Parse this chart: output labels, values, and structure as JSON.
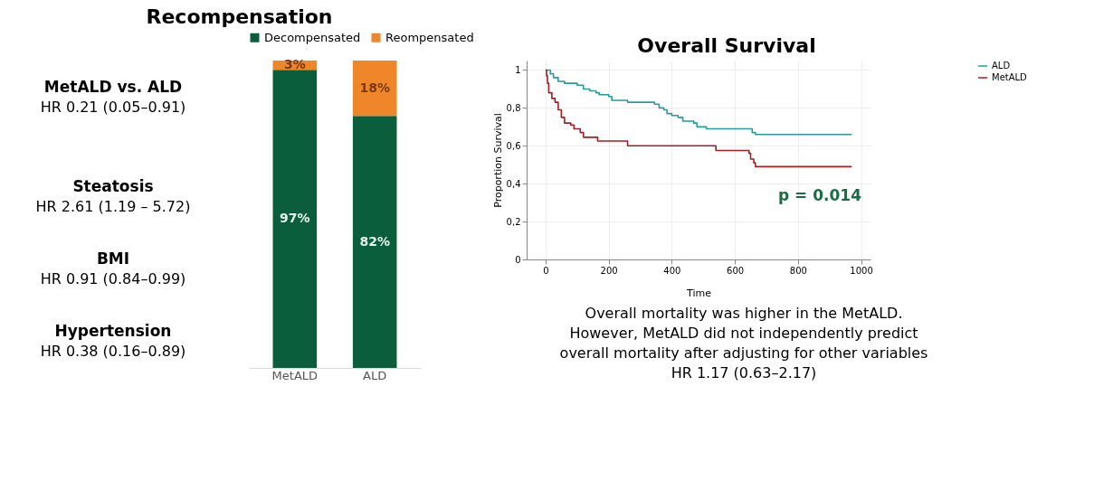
{
  "chart_data": [
    {
      "type": "bar",
      "title": "Recompensation",
      "stacked": true,
      "legend": "top",
      "categories": [
        "MetALD",
        "ALD"
      ],
      "series": [
        {
          "name": "Decompensated",
          "color": "#0b5e3b",
          "values": [
            97,
            82
          ],
          "value_labels": [
            "97%",
            "82%"
          ]
        },
        {
          "name": "Reompensated",
          "color": "#f0862a",
          "values": [
            3,
            18
          ],
          "value_labels": [
            "3%",
            "18%"
          ]
        }
      ],
      "annotations": [
        "MetALD vs. ALD",
        "HR 0.21 (0.05–0.91)",
        "Steatosis",
        "HR 2.61 (1.19 – 5.72)",
        "BMI",
        "HR 0.91 (0.84–0.99)",
        "Hypertension",
        "HR 0.38 (0.16–0.89)"
      ]
    },
    {
      "type": "step",
      "title": "Overall Survival",
      "xlabel": "Time",
      "ylabel": "Proportion Survival",
      "legend": "top right",
      "grid": true,
      "line_style": "solid",
      "xlim": [
        -60,
        1030
      ],
      "xticks": [
        0,
        200,
        400,
        600,
        800,
        1000
      ],
      "ylim": [
        0,
        1.05
      ],
      "yticks": [
        0,
        {
          "value": 0.2,
          "label": "0,2"
        },
        {
          "value": 0.4,
          "label": "0,4"
        },
        {
          "value": 0.6,
          "label": "0,6"
        },
        {
          "value": 0.8,
          "label": "0,8"
        },
        1
      ],
      "series": [
        {
          "name": "ALD",
          "color": "#2a9a9c",
          "x": [
            0,
            15,
            25,
            40,
            60,
            100,
            120,
            140,
            160,
            170,
            200,
            210,
            260,
            345,
            360,
            375,
            385,
            400,
            420,
            435,
            470,
            480,
            510,
            655,
            665,
            970
          ],
          "values": [
            1.0,
            0.98,
            0.96,
            0.94,
            0.93,
            0.92,
            0.9,
            0.89,
            0.88,
            0.87,
            0.86,
            0.84,
            0.83,
            0.82,
            0.8,
            0.79,
            0.77,
            0.76,
            0.75,
            0.73,
            0.72,
            0.7,
            0.69,
            0.67,
            0.66,
            0.66
          ]
        },
        {
          "name": "MetALD",
          "color": "#a31f24",
          "x": [
            0,
            3,
            6,
            10,
            20,
            30,
            40,
            50,
            60,
            80,
            90,
            110,
            120,
            165,
            260,
            540,
            645,
            650,
            660,
            665,
            970
          ],
          "values": [
            1.0,
            0.97,
            0.93,
            0.88,
            0.85,
            0.83,
            0.79,
            0.75,
            0.72,
            0.71,
            0.69,
            0.67,
            0.645,
            0.625,
            0.6,
            0.575,
            0.56,
            0.53,
            0.51,
            0.49,
            0.49
          ]
        }
      ],
      "annotations": [
        "p = 0.014",
        "Overall mortality was higher in the MetALD.",
        "However, MetALD did not independently predict",
        "overall mortality after adjusting for other variables",
        "HR 1.17  (0.63–2.17)"
      ]
    }
  ]
}
